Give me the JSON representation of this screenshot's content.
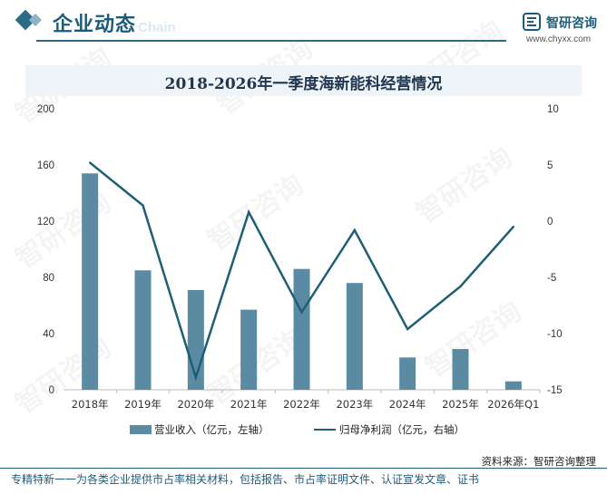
{
  "header": {
    "section_title": "企业动态",
    "watermark_text": "Chain",
    "logo_name": "智研咨询",
    "logo_url": "www.chyxx.com"
  },
  "chart_data": {
    "type": "bar",
    "title": "2018-2026年一季度海新能科经营情况",
    "categories": [
      "2018年",
      "2019年",
      "2020年",
      "2021年",
      "2022年",
      "2023年",
      "2024年",
      "2025年",
      "2026年Q1"
    ],
    "series": [
      {
        "name": "营业收入（亿元，左轴）",
        "type": "bar",
        "axis": "left",
        "color": "#5b8ba3",
        "values": [
          154,
          85,
          71,
          57,
          86,
          76,
          23,
          29,
          6
        ]
      },
      {
        "name": "归母净利润（亿元，右轴）",
        "type": "line",
        "axis": "right",
        "color": "#1e5f77",
        "values": [
          5.2,
          1.4,
          -13.9,
          0.8,
          -8.1,
          -0.8,
          -9.6,
          -5.8,
          -0.5
        ]
      }
    ],
    "y_left": {
      "min": 0,
      "max": 200,
      "ticks": [
        0,
        40,
        80,
        120,
        160,
        200
      ]
    },
    "y_right": {
      "min": -15,
      "max": 10,
      "ticks": [
        -15,
        -10,
        -5,
        0,
        5,
        10
      ]
    },
    "grid": false,
    "legend_position": "bottom"
  },
  "source_text": "资料来源：智研咨询整理",
  "footer_text": "专精特新一一为各类企业提供市占率相关材料，包括报告、市占率证明文件、认证宣发文章、证书"
}
